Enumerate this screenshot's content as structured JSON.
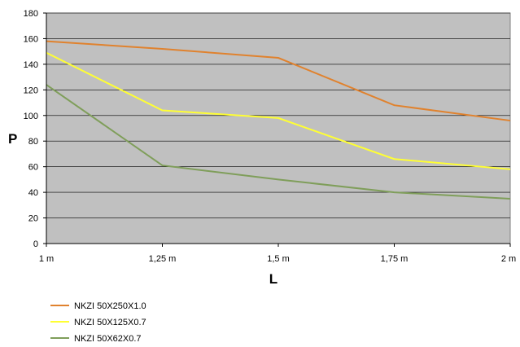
{
  "chart_data": {
    "type": "line",
    "title": "",
    "xlabel": "L",
    "ylabel": "P",
    "categories": [
      "1 m",
      "1,25 m",
      "1,5 m",
      "1,75 m",
      "2 m"
    ],
    "ylim": [
      0,
      180
    ],
    "yticks": [
      0,
      20,
      40,
      60,
      80,
      100,
      120,
      140,
      160,
      180
    ],
    "grid": true,
    "legend_position": "bottom-left",
    "plot_background": "#c0c0c0",
    "series": [
      {
        "name": "NKZI 50X250X1.0",
        "color": "#e0822e",
        "values": [
          158,
          152,
          145,
          108,
          96
        ]
      },
      {
        "name": "NKZI 50X125X0.7",
        "color": "#ffff33",
        "values": [
          149,
          104,
          98,
          66,
          58
        ]
      },
      {
        "name": "NKZI 50X62X0.7",
        "color": "#7f9e5a",
        "values": [
          124,
          61,
          50,
          40,
          35
        ]
      }
    ]
  }
}
